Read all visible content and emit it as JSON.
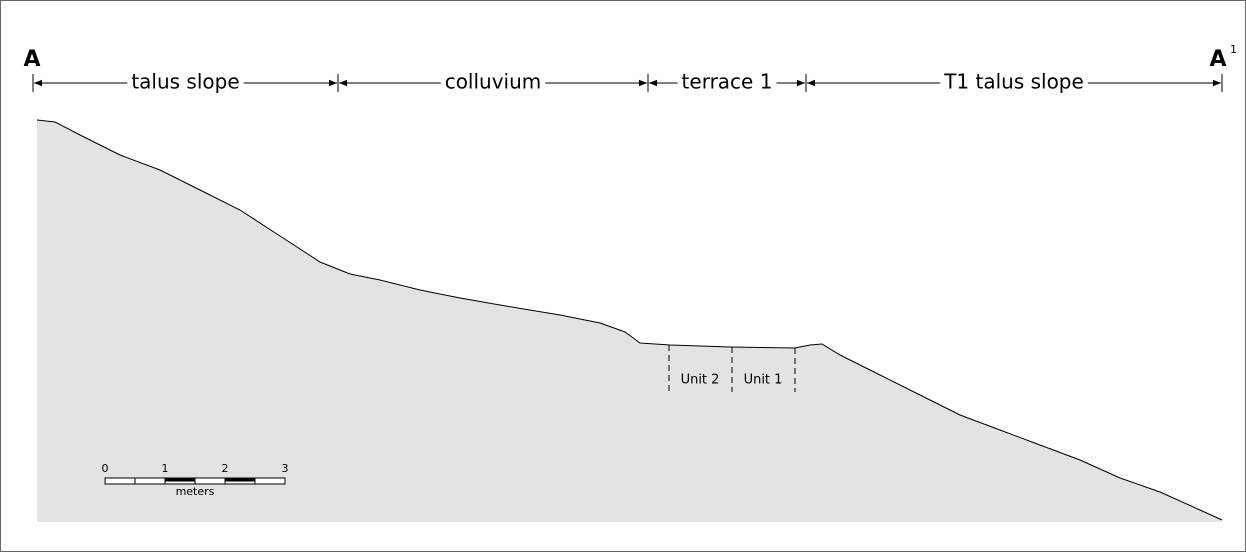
{
  "section": {
    "start_label": "A",
    "end_label": "A",
    "end_superscript": "1"
  },
  "zones": [
    "talus slope",
    "colluvium",
    "terrace 1",
    "T1 talus slope"
  ],
  "units": [
    "Unit 2",
    "Unit 1"
  ],
  "scale_bar": {
    "ticks": [
      "0",
      "1",
      "2",
      "3"
    ],
    "unit": "meters"
  }
}
